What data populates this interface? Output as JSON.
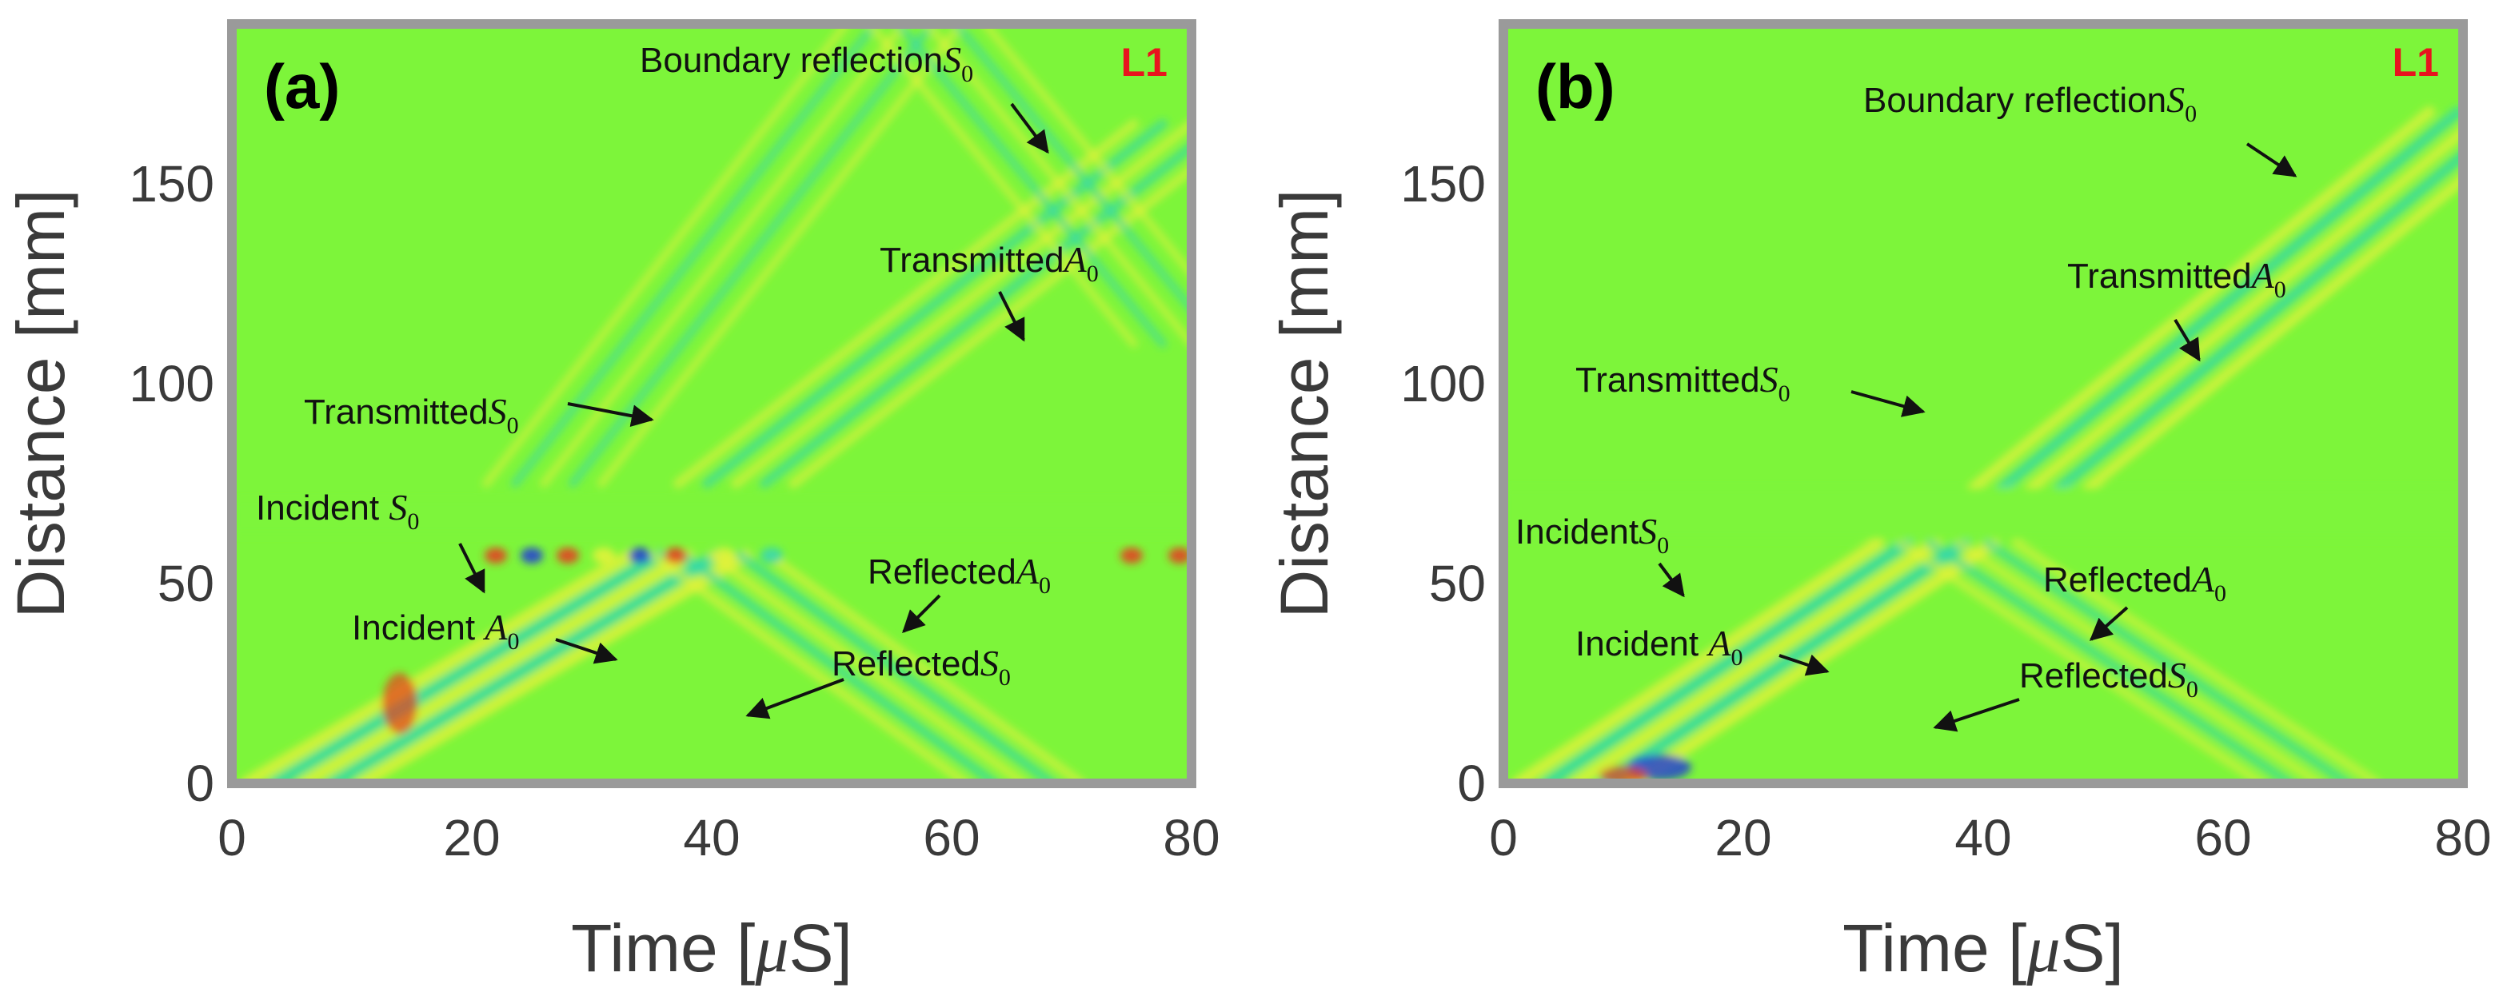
{
  "colors": {
    "background_field": "#7df53a",
    "frame": "#9a9a9a",
    "wave_yellow": "#e8f23a",
    "wave_cyan": "#2fd6b4",
    "wave_red": "#e83a20",
    "wave_blue": "#1e3ad8",
    "corner_label": "#e8141e"
  },
  "chart_data": [
    {
      "type": "heatmap",
      "panel_label": "(a)",
      "corner_label": "L1",
      "xlabel": "Time [",
      "xlabel_mu": "μ",
      "xlabel_end": "S]",
      "ylabel": "Distance [mm]",
      "xlim": [
        0,
        80
      ],
      "ylim": [
        0,
        190
      ],
      "xticks": [
        "0",
        "20",
        "40",
        "60",
        "80"
      ],
      "yticks": [
        "0",
        "50",
        "100",
        "150"
      ],
      "xtick_values": [
        0,
        20,
        40,
        60,
        80
      ],
      "ytick_values": [
        0,
        50,
        100,
        150
      ],
      "annotations": [
        {
          "text": "Boundary  reflection",
          "symbol": "S",
          "sub": "0",
          "label_at": [
            34,
            178
          ],
          "arrow_from": [
            65,
            170
          ],
          "arrow_to": [
            68,
            158
          ]
        },
        {
          "text": "Transmitted",
          "symbol": "A",
          "sub": "0",
          "label_at": [
            54,
            128
          ],
          "arrow_from": [
            64,
            123
          ],
          "arrow_to": [
            66,
            111
          ]
        },
        {
          "text": "Transmitted",
          "symbol": "S",
          "sub": "0",
          "label_at": [
            6,
            90
          ],
          "arrow_from": [
            28,
            95
          ],
          "arrow_to": [
            35,
            91
          ]
        },
        {
          "text": "Incident ",
          "symbol": "S",
          "sub": "0",
          "label_at": [
            2,
            66
          ],
          "arrow_from": [
            19,
            60
          ],
          "arrow_to": [
            21,
            48
          ]
        },
        {
          "text": "Reflected",
          "symbol": "A",
          "sub": "0",
          "label_at": [
            53,
            50
          ],
          "arrow_from": [
            59,
            47
          ],
          "arrow_to": [
            56,
            38
          ]
        },
        {
          "text": "Incident ",
          "symbol": "A",
          "sub": "0",
          "label_at": [
            10,
            36
          ],
          "arrow_from": [
            27,
            36
          ],
          "arrow_to": [
            32,
            31
          ]
        },
        {
          "text": "Reflected",
          "symbol": "S",
          "sub": "0",
          "label_at": [
            50,
            27
          ],
          "arrow_from": [
            51,
            26
          ],
          "arrow_to": [
            43,
            17
          ]
        }
      ]
    },
    {
      "type": "heatmap",
      "panel_label": "(b)",
      "corner_label": "L1",
      "xlabel": "Time [",
      "xlabel_mu": "μ",
      "xlabel_end": "S]",
      "ylabel": "Distance [mm]",
      "xlim": [
        0,
        80
      ],
      "ylim": [
        0,
        190
      ],
      "xticks": [
        "0",
        "20",
        "40",
        "60",
        "80"
      ],
      "yticks": [
        "0",
        "50",
        "100",
        "150"
      ],
      "xtick_values": [
        0,
        20,
        40,
        60,
        80
      ],
      "ytick_values": [
        0,
        50,
        100,
        150
      ],
      "annotations": [
        {
          "text": "Boundary  reflection",
          "symbol": "S",
          "sub": "0",
          "label_at": [
            30,
            168
          ],
          "arrow_from": [
            62,
            160
          ],
          "arrow_to": [
            66,
            152
          ]
        },
        {
          "text": "Transmitted",
          "symbol": "A",
          "sub": "0",
          "label_at": [
            47,
            124
          ],
          "arrow_from": [
            56,
            116
          ],
          "arrow_to": [
            58,
            106
          ]
        },
        {
          "text": "Transmitted",
          "symbol": "S",
          "sub": "0",
          "label_at": [
            6,
            98
          ],
          "arrow_from": [
            29,
            98
          ],
          "arrow_to": [
            35,
            93
          ]
        },
        {
          "text": "Incident",
          "symbol": "S",
          "sub": "0",
          "label_at": [
            1,
            60
          ],
          "arrow_from": [
            13,
            55
          ],
          "arrow_to": [
            15,
            47
          ]
        },
        {
          "text": "Reflected",
          "symbol": "A",
          "sub": "0",
          "label_at": [
            45,
            48
          ],
          "arrow_from": [
            52,
            44
          ],
          "arrow_to": [
            49,
            36
          ]
        },
        {
          "text": "Incident ",
          "symbol": "A",
          "sub": "0",
          "label_at": [
            6,
            32
          ],
          "arrow_from": [
            23,
            32
          ],
          "arrow_to": [
            27,
            28
          ]
        },
        {
          "text": "Reflected",
          "symbol": "S",
          "sub": "0",
          "label_at": [
            43,
            24
          ],
          "arrow_from": [
            43,
            21
          ],
          "arrow_to": [
            36,
            14
          ]
        }
      ]
    }
  ]
}
